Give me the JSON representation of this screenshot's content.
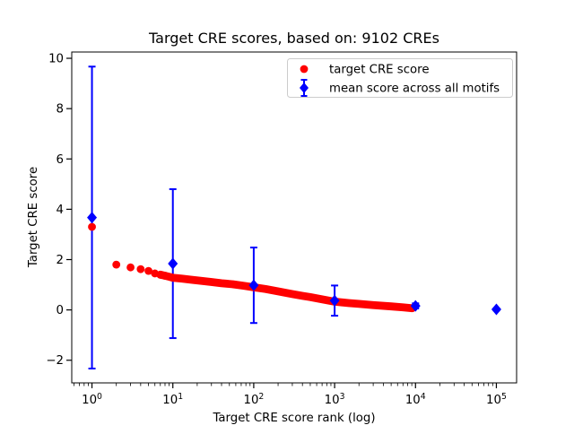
{
  "chart_data": {
    "type": "scatter",
    "title": "Target CRE scores, based on: 9102 CREs",
    "xlabel": "Target CRE score rank (log)",
    "ylabel": "Target CRE score",
    "x_scale": "log10",
    "xlim_log10": [
      -0.25,
      5.25
    ],
    "ylim": [
      -2.9,
      10.25
    ],
    "grid": false,
    "x_major_ticks": [
      1,
      10,
      100,
      1000,
      10000,
      100000
    ],
    "x_tick_base": "10",
    "x_tick_exponents": [
      "0",
      "1",
      "2",
      "3",
      "4",
      "5"
    ],
    "x_minor_decades": [
      -1,
      0,
      1,
      2,
      3,
      4,
      5
    ],
    "y_ticks": [
      -2,
      0,
      2,
      4,
      6,
      8,
      10
    ],
    "y_tick_labels": [
      "−2",
      "0",
      "2",
      "4",
      "6",
      "8",
      "10"
    ],
    "colors": {
      "target": "#ff0000",
      "mean": "#0000ff",
      "legend_border": "#cccccc",
      "spine": "#000000"
    },
    "series": [
      {
        "name": "target CRE score",
        "type": "scatter",
        "marker": "circle",
        "color": "#ff0000",
        "n_points_depicted": 9102,
        "points": [
          [
            1,
            3.3
          ],
          [
            2,
            1.8
          ],
          [
            3,
            1.69
          ],
          [
            4,
            1.62
          ],
          [
            5,
            1.55
          ],
          [
            6,
            1.45
          ],
          [
            7,
            1.4
          ],
          [
            8,
            1.36
          ],
          [
            9,
            1.32
          ],
          [
            10,
            1.28
          ],
          [
            13,
            1.24
          ],
          [
            17,
            1.2
          ],
          [
            22,
            1.16
          ],
          [
            30,
            1.11
          ],
          [
            40,
            1.06
          ],
          [
            55,
            1.02
          ],
          [
            75,
            0.96
          ],
          [
            100,
            0.9
          ],
          [
            140,
            0.83
          ],
          [
            200,
            0.74
          ],
          [
            300,
            0.63
          ],
          [
            400,
            0.56
          ],
          [
            500,
            0.51
          ],
          [
            700,
            0.42
          ],
          [
            1000,
            0.33
          ],
          [
            1500,
            0.27
          ],
          [
            2000,
            0.24
          ],
          [
            3000,
            0.19
          ],
          [
            5000,
            0.14
          ],
          [
            7000,
            0.1
          ],
          [
            9102,
            0.07
          ]
        ]
      },
      {
        "name": "mean score across all motifs",
        "type": "errorbar",
        "marker": "diamond",
        "color": "#0000ff",
        "points": [
          {
            "rank": 1,
            "mean": 3.67,
            "err": 6.0
          },
          {
            "rank": 10,
            "mean": 1.84,
            "err": 2.96
          },
          {
            "rank": 100,
            "mean": 0.98,
            "err": 1.5
          },
          {
            "rank": 1000,
            "mean": 0.37,
            "err": 0.6
          },
          {
            "rank": 10000,
            "mean": 0.16,
            "err": 0.1
          },
          {
            "rank": 100000,
            "mean": 0.02,
            "err": 0.04
          }
        ]
      }
    ],
    "legend": {
      "position": "upper right",
      "labels": [
        "target CRE score",
        "mean score across all motifs"
      ]
    }
  }
}
